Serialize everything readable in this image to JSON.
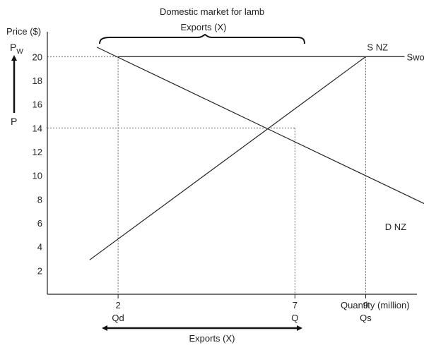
{
  "chart_data": {
    "type": "line",
    "title": "Domestic market for lamb",
    "ylabel": "Price ($)",
    "xlabel": "Quantity (million)",
    "xlim": [
      0,
      10.45
    ],
    "ylim": [
      0,
      22.1
    ],
    "y_ticks": [
      "2",
      "4",
      "6",
      "8",
      "10",
      "12",
      "14",
      "16",
      "18",
      "20"
    ],
    "x_ticks": [
      {
        "value": 2,
        "label": "2",
        "sublabel": "Qd"
      },
      {
        "value": 7,
        "label": "7",
        "sublabel": "Q"
      },
      {
        "value": 9,
        "label": "9",
        "sublabel": "Qs"
      }
    ],
    "series": [
      {
        "name": "S NZ",
        "x": [
          1.2,
          9.0
        ],
        "y": [
          2.9,
          20.0
        ]
      },
      {
        "name": "D NZ",
        "x": [
          1.4,
          11.8
        ],
        "y": [
          20.8,
          6.0
        ]
      },
      {
        "name": "Sworld",
        "x": [
          2.0,
          10.1
        ],
        "y": [
          20.0,
          20.0
        ]
      }
    ],
    "guides": {
      "world_price": 20,
      "domestic_price": 14,
      "equilibrium_quantity": 7,
      "quantity_demanded": 2,
      "quantity_supplied": 9
    },
    "annotations": {
      "pw_label": "P",
      "pw_subscript": "W",
      "p_label": "P",
      "exports_top": "Exports (X)",
      "exports_bottom": "Exports (X)"
    },
    "grid": false,
    "legend": "none"
  }
}
